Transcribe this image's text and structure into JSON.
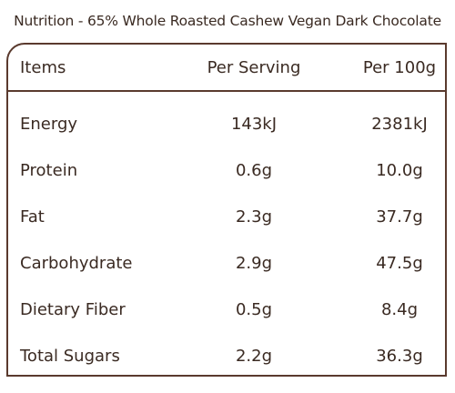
{
  "title": "Nutrition - 65% Whole Roasted Cashew Vegan Dark Chocolate",
  "table": {
    "headers": {
      "items": "Items",
      "per_serving": "Per Serving",
      "per_100g": "Per 100g"
    },
    "rows": [
      {
        "item": "Energy",
        "per_serving": "143kJ",
        "per_100g": "2381kJ"
      },
      {
        "item": "Protein",
        "per_serving": "0.6g",
        "per_100g": "10.0g"
      },
      {
        "item": "Fat",
        "per_serving": "2.3g",
        "per_100g": "37.7g"
      },
      {
        "item": "Carbohydrate",
        "per_serving": "2.9g",
        "per_100g": "47.5g"
      },
      {
        "item": "Dietary Fiber",
        "per_serving": "0.5g",
        "per_100g": "8.4g"
      },
      {
        "item": "Total Sugars",
        "per_serving": "2.2g",
        "per_100g": "36.3g"
      }
    ]
  },
  "colors": {
    "border": "#5a3a2e",
    "text": "#3a2a22",
    "background": "#ffffff"
  }
}
